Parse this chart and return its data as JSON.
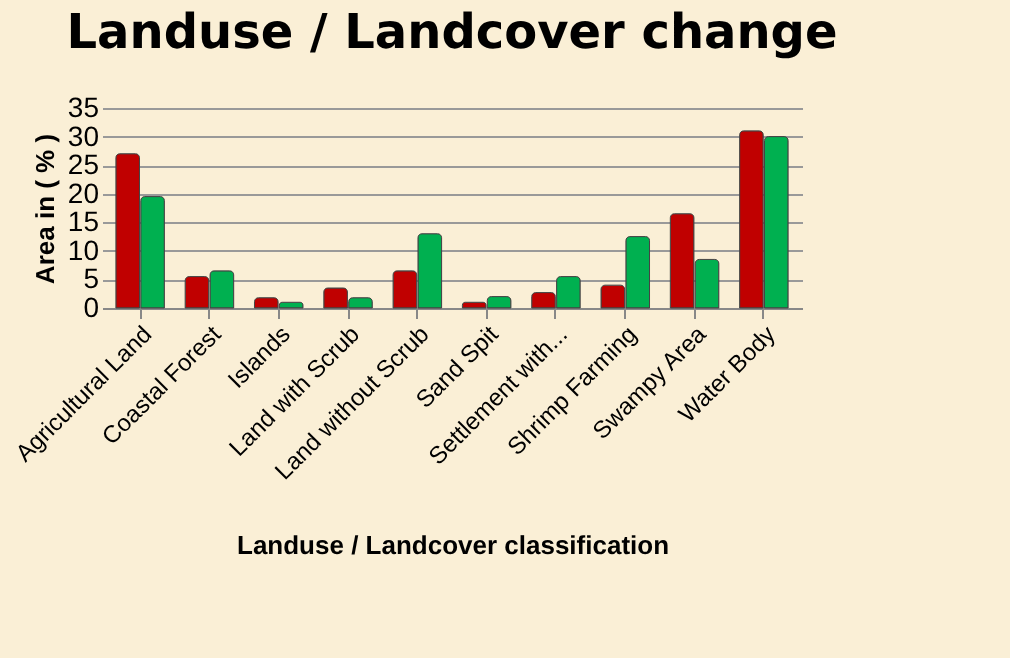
{
  "chart_data": {
    "type": "bar",
    "title": "Landuse / Landcover change",
    "xlabel": "Landuse / Landcover classification",
    "ylabel": "Area in ( % )",
    "categories": [
      "Agricultural Land",
      "Coastal Forest",
      "Islands",
      "Land with Scrub",
      "Land without Scrub",
      "Sand Spit",
      "Settlement with...",
      "Shrimp Farming",
      "Swampy Area",
      "Water Body"
    ],
    "series": [
      {
        "color": "#c00000",
        "values": [
          27,
          5.5,
          1.8,
          3.5,
          6.5,
          1,
          2.7,
          4,
          16.5,
          31
        ]
      },
      {
        "color": "#00b050",
        "values": [
          19.5,
          6.5,
          1,
          1.8,
          13,
          2,
          5.5,
          12.5,
          8.5,
          30
        ]
      }
    ],
    "ylim": [
      0,
      35
    ],
    "yticks": [
      0,
      5,
      10,
      15,
      20,
      25,
      30,
      35
    ],
    "grid": "y",
    "legend": false
  }
}
